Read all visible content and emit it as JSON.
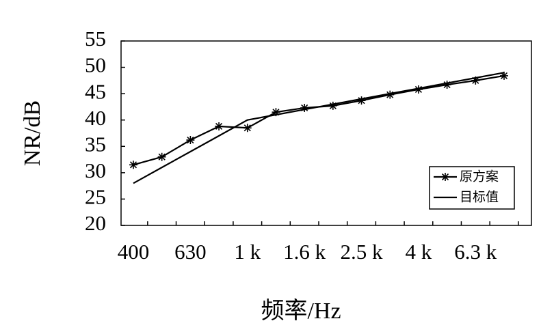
{
  "chart_data": {
    "type": "line",
    "x_label": "频率/Hz",
    "y_label": "NR/dB",
    "categories": [
      "400",
      null,
      "630",
      null,
      "1 k",
      null,
      "1.6 k",
      null,
      "2.5 k",
      null,
      "4 k",
      null,
      "6.3 k",
      null
    ],
    "series": [
      {
        "name": "原方案",
        "color": "#000000",
        "marker": "star",
        "values": [
          31.5,
          33,
          36.2,
          38.8,
          38.5,
          41.5,
          42.3,
          42.7,
          43.7,
          44.8,
          45.8,
          46.7,
          47.5,
          48.4
        ]
      },
      {
        "name": "目标值",
        "color": "#000000",
        "marker": "none",
        "values": [
          28,
          31,
          34,
          37,
          40,
          41,
          42,
          43,
          44,
          45,
          46,
          47,
          48,
          49
        ]
      }
    ],
    "ylim": [
      20,
      55
    ],
    "yticks": [
      20,
      25,
      30,
      35,
      40,
      45,
      50,
      55
    ],
    "grid": false,
    "legend": "lower right"
  }
}
